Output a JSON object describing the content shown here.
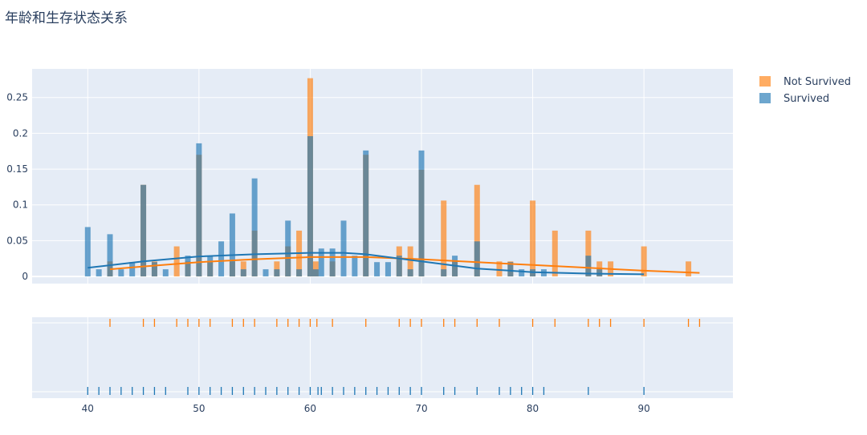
{
  "chart_data": {
    "type": "histogram",
    "title": "年龄和生存状态关系",
    "xlabel": "",
    "ylabel": "",
    "histnorm": "probability",
    "xlim": [
      35,
      98
    ],
    "ylim": [
      -0.01,
      0.29
    ],
    "x_ticks": [
      40,
      50,
      60,
      70,
      80,
      90
    ],
    "y_ticks": [
      0,
      0.05,
      0.1,
      0.15,
      0.2,
      0.25
    ],
    "y_tick_labels": [
      "0",
      "0.05",
      "0.1",
      "0.15",
      "0.2",
      "0.25"
    ],
    "grid": true,
    "legend_position": "top-right",
    "marginal": "rug",
    "series": [
      {
        "name": "Not Survived",
        "color": "#ff7f0e",
        "bars": [
          {
            "x": 42,
            "y": 0.021
          },
          {
            "x": 45,
            "y": 0.128
          },
          {
            "x": 46,
            "y": 0.021
          },
          {
            "x": 48,
            "y": 0.042
          },
          {
            "x": 49,
            "y": 0.021
          },
          {
            "x": 50,
            "y": 0.17
          },
          {
            "x": 51,
            "y": 0.021
          },
          {
            "x": 53,
            "y": 0.021
          },
          {
            "x": 54,
            "y": 0.021
          },
          {
            "x": 55,
            "y": 0.064
          },
          {
            "x": 57,
            "y": 0.021
          },
          {
            "x": 58,
            "y": 0.042
          },
          {
            "x": 59,
            "y": 0.064
          },
          {
            "x": 60,
            "y": 0.277
          },
          {
            "x": 60.5,
            "y": 0.021
          },
          {
            "x": 62,
            "y": 0.021
          },
          {
            "x": 65,
            "y": 0.17
          },
          {
            "x": 68,
            "y": 0.042
          },
          {
            "x": 69,
            "y": 0.042
          },
          {
            "x": 70,
            "y": 0.149
          },
          {
            "x": 72,
            "y": 0.106
          },
          {
            "x": 73,
            "y": 0.021
          },
          {
            "x": 75,
            "y": 0.128
          },
          {
            "x": 77,
            "y": 0.021
          },
          {
            "x": 78,
            "y": 0.021
          },
          {
            "x": 80,
            "y": 0.106
          },
          {
            "x": 82,
            "y": 0.064
          },
          {
            "x": 85,
            "y": 0.064
          },
          {
            "x": 86,
            "y": 0.021
          },
          {
            "x": 87,
            "y": 0.021
          },
          {
            "x": 90,
            "y": 0.042
          },
          {
            "x": 94,
            "y": 0.021
          },
          {
            "x": 95,
            "y": 0.0
          }
        ],
        "kde": [
          {
            "x": 42,
            "y": 0.01
          },
          {
            "x": 45,
            "y": 0.014
          },
          {
            "x": 50,
            "y": 0.02
          },
          {
            "x": 55,
            "y": 0.024
          },
          {
            "x": 60,
            "y": 0.027
          },
          {
            "x": 65,
            "y": 0.027
          },
          {
            "x": 70,
            "y": 0.024
          },
          {
            "x": 75,
            "y": 0.02
          },
          {
            "x": 80,
            "y": 0.016
          },
          {
            "x": 85,
            "y": 0.012
          },
          {
            "x": 90,
            "y": 0.008
          },
          {
            "x": 95,
            "y": 0.005
          }
        ],
        "rug": [
          42,
          45,
          46,
          48,
          49,
          50,
          51,
          53,
          54,
          55,
          57,
          58,
          59,
          60,
          60.6,
          62,
          65,
          68,
          69,
          70,
          72,
          73,
          75,
          77,
          80,
          82,
          85,
          86,
          87,
          90,
          94,
          95
        ]
      },
      {
        "name": "Survived",
        "color": "#1f77b4",
        "bars": [
          {
            "x": 40,
            "y": 0.069
          },
          {
            "x": 41,
            "y": 0.01
          },
          {
            "x": 42,
            "y": 0.059
          },
          {
            "x": 43,
            "y": 0.01
          },
          {
            "x": 44,
            "y": 0.02
          },
          {
            "x": 45,
            "y": 0.128
          },
          {
            "x": 46,
            "y": 0.02
          },
          {
            "x": 47,
            "y": 0.01
          },
          {
            "x": 49,
            "y": 0.029
          },
          {
            "x": 50,
            "y": 0.186
          },
          {
            "x": 51,
            "y": 0.029
          },
          {
            "x": 52,
            "y": 0.049
          },
          {
            "x": 53,
            "y": 0.088
          },
          {
            "x": 54,
            "y": 0.01
          },
          {
            "x": 55,
            "y": 0.137
          },
          {
            "x": 56,
            "y": 0.01
          },
          {
            "x": 57,
            "y": 0.01
          },
          {
            "x": 58,
            "y": 0.078
          },
          {
            "x": 59,
            "y": 0.01
          },
          {
            "x": 60,
            "y": 0.196
          },
          {
            "x": 60.5,
            "y": 0.01
          },
          {
            "x": 61,
            "y": 0.039
          },
          {
            "x": 62,
            "y": 0.039
          },
          {
            "x": 63,
            "y": 0.078
          },
          {
            "x": 64,
            "y": 0.029
          },
          {
            "x": 65,
            "y": 0.176
          },
          {
            "x": 66,
            "y": 0.02
          },
          {
            "x": 67,
            "y": 0.02
          },
          {
            "x": 68,
            "y": 0.029
          },
          {
            "x": 69,
            "y": 0.01
          },
          {
            "x": 70,
            "y": 0.176
          },
          {
            "x": 72,
            "y": 0.01
          },
          {
            "x": 73,
            "y": 0.029
          },
          {
            "x": 75,
            "y": 0.049
          },
          {
            "x": 78,
            "y": 0.02
          },
          {
            "x": 79,
            "y": 0.01
          },
          {
            "x": 80,
            "y": 0.01
          },
          {
            "x": 81,
            "y": 0.01
          },
          {
            "x": 85,
            "y": 0.029
          },
          {
            "x": 86,
            "y": 0.01
          },
          {
            "x": 90,
            "y": 0.0
          }
        ],
        "kde": [
          {
            "x": 40,
            "y": 0.012
          },
          {
            "x": 45,
            "y": 0.021
          },
          {
            "x": 50,
            "y": 0.028
          },
          {
            "x": 55,
            "y": 0.031
          },
          {
            "x": 60,
            "y": 0.033
          },
          {
            "x": 63,
            "y": 0.033
          },
          {
            "x": 65,
            "y": 0.031
          },
          {
            "x": 70,
            "y": 0.021
          },
          {
            "x": 75,
            "y": 0.011
          },
          {
            "x": 80,
            "y": 0.006
          },
          {
            "x": 85,
            "y": 0.004
          },
          {
            "x": 90,
            "y": 0.003
          }
        ],
        "rug": [
          40,
          41,
          42,
          43,
          44,
          45,
          46,
          47,
          49,
          50,
          51,
          52,
          53,
          54,
          55,
          56,
          57,
          58,
          59,
          60,
          60.7,
          61,
          62,
          63,
          64,
          65,
          66,
          67,
          68,
          69,
          70,
          72,
          73,
          75,
          77,
          78,
          79,
          80,
          81,
          85,
          90
        ]
      }
    ]
  }
}
